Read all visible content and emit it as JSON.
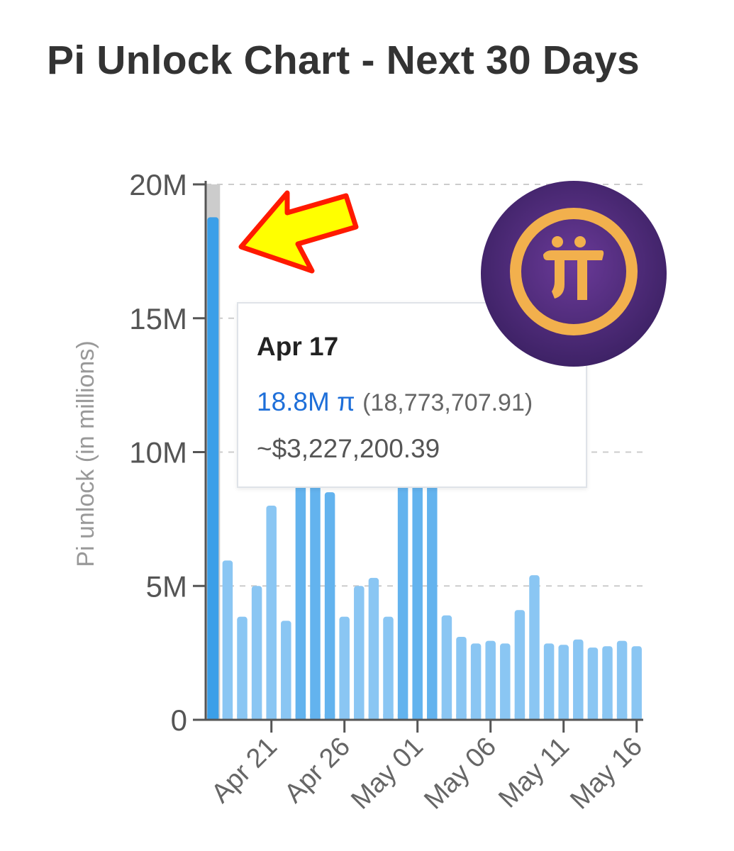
{
  "title": "Pi Unlock Chart - Next 30 Days",
  "colors": {
    "bar": "#8ac6f3",
    "bar_highlight": "#63b3ee",
    "bar_selected": "#3b9fe8",
    "hover_band": "#cccccc",
    "grid": "#cccccc",
    "axis": "#555555",
    "tooltip_value": "#1e6fd9",
    "logo_bg": "#4a2a78",
    "logo_ring": "#f2b04d",
    "arrow_fill": "#ffff00",
    "arrow_stroke": "#ff1a00"
  },
  "tooltip": {
    "date": "Apr 17",
    "value": "18.8M π",
    "exact": "(18,773,707.91)",
    "usd": "~$3,227,200.39"
  },
  "logo": {
    "icon": "pi-network-logo-icon",
    "glyph": "π"
  },
  "annotation": {
    "icon": "yellow-arrow-icon",
    "target": "Apr 17"
  },
  "chart_data": {
    "type": "bar",
    "ylabel": "Pi unlock (in millions)",
    "xlabel": "",
    "ylim": [
      0,
      20
    ],
    "yticks": [
      {
        "value": 0,
        "label": "0"
      },
      {
        "value": 5,
        "label": "5M"
      },
      {
        "value": 10,
        "label": "10M"
      },
      {
        "value": 15,
        "label": "15M"
      },
      {
        "value": 20,
        "label": "20M"
      }
    ],
    "xticks": [
      "Apr 21",
      "Apr 26",
      "May 01",
      "May 06",
      "May 11",
      "May 16"
    ],
    "grid": true,
    "selected": "Apr 17",
    "categories": [
      "Apr 17",
      "Apr 18",
      "Apr 19",
      "Apr 20",
      "Apr 21",
      "Apr 22",
      "Apr 23",
      "Apr 24",
      "Apr 25",
      "Apr 26",
      "Apr 27",
      "Apr 28",
      "Apr 29",
      "Apr 30",
      "May 01",
      "May 02",
      "May 03",
      "May 04",
      "May 05",
      "May 06",
      "May 07",
      "May 08",
      "May 09",
      "May 10",
      "May 11",
      "May 12",
      "May 13",
      "May 14",
      "May 15",
      "May 16"
    ],
    "values": [
      18.77,
      5.95,
      3.85,
      5.0,
      8.0,
      3.7,
      9.0,
      9.0,
      8.5,
      3.85,
      5.0,
      5.3,
      3.85,
      9.0,
      9.0,
      9.0,
      3.9,
      3.1,
      2.85,
      2.95,
      2.85,
      4.1,
      5.4,
      2.85,
      2.8,
      3.0,
      2.7,
      2.75,
      2.95,
      2.75
    ],
    "emphasized": [
      "Apr 23",
      "Apr 24",
      "Apr 25",
      "Apr 30",
      "May 01",
      "May 02"
    ]
  }
}
